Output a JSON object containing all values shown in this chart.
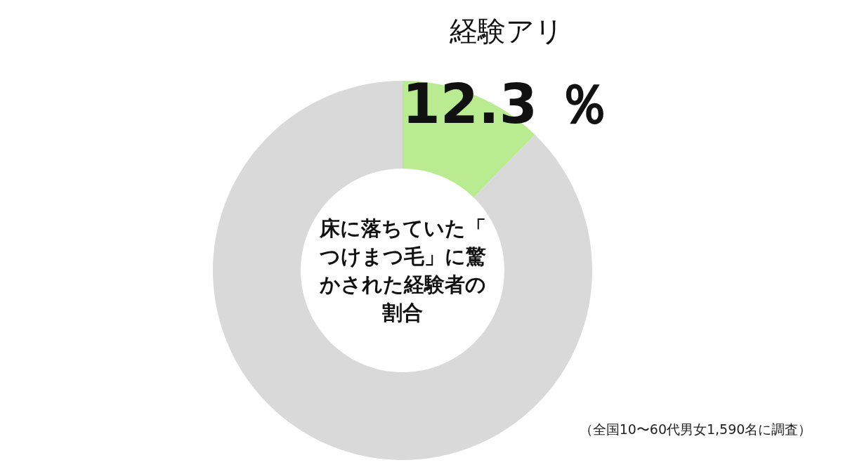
{
  "chart_data": {
    "type": "donut",
    "title": "床に落ちていた「つけまつ毛」に驚かされた経験者の割合",
    "categories": [
      "経験アリ",
      null
    ],
    "values": [
      12.3,
      87.7
    ],
    "colors": [
      "#b9ec90",
      "#d9d9d9"
    ],
    "value_labels": [
      "12.3 ％",
      null
    ],
    "annotations": [
      "（全国10〜60代男女1,590名に調査）"
    ]
  }
}
